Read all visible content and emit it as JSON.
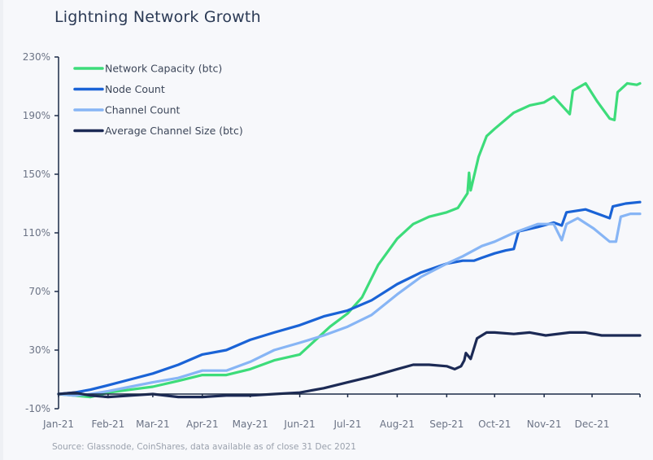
{
  "chart_data": {
    "type": "line",
    "title": "Lightning Network Growth",
    "xlabel": "",
    "ylabel": "",
    "source": "Source: Glassnode, CoinShares, data available as of close 31 Dec 2021",
    "x_unit": "day of 2021",
    "xlim": [
      0,
      364
    ],
    "ylim": [
      -10,
      230
    ],
    "y_ticks": [
      -10,
      30,
      70,
      110,
      150,
      190,
      230
    ],
    "y_tick_labels": [
      "-10%",
      "30%",
      "70%",
      "110%",
      "150%",
      "190%",
      "230%"
    ],
    "x_ticks": [
      0,
      31,
      59,
      90,
      120,
      151,
      181,
      212,
      243,
      273,
      304,
      334,
      364
    ],
    "x_tick_labels": [
      "Jan-21",
      "Feb-21",
      "Mar-21",
      "Apr-21",
      "May-21",
      "Jun-21",
      "Jul-21",
      "Aug-21",
      "Sep-21",
      "Oct-21",
      "Nov-21",
      "Dec-21",
      ""
    ],
    "grid": false,
    "legend_position": "top-left",
    "series": [
      {
        "name": "Network Capacity (btc)",
        "color": "#3ddc7a",
        "x": [
          0,
          10,
          20,
          31,
          45,
          59,
          75,
          90,
          105,
          120,
          135,
          151,
          160,
          170,
          181,
          190,
          200,
          212,
          222,
          232,
          243,
          250,
          256,
          257,
          258,
          263,
          268,
          273,
          285,
          295,
          304,
          310,
          320,
          322,
          330,
          337,
          345,
          348,
          350,
          356,
          362,
          364
        ],
        "y": [
          0,
          -1,
          -2,
          1,
          3,
          5,
          9,
          13,
          13,
          17,
          23,
          27,
          36,
          46,
          55,
          66,
          88,
          106,
          116,
          121,
          124,
          127,
          137,
          151,
          139,
          162,
          176,
          181,
          192,
          197,
          199,
          203,
          191,
          207,
          212,
          200,
          188,
          187,
          206,
          212,
          211,
          212
        ]
      },
      {
        "name": "Node Count",
        "color": "#1a63d6",
        "x": [
          0,
          10,
          20,
          31,
          45,
          59,
          75,
          90,
          105,
          120,
          135,
          151,
          166,
          181,
          196,
          212,
          227,
          243,
          253,
          260,
          265,
          273,
          280,
          285,
          288,
          300,
          310,
          315,
          318,
          330,
          340,
          345,
          347,
          355,
          364
        ],
        "y": [
          0,
          1,
          3,
          6,
          10,
          14,
          20,
          27,
          30,
          37,
          42,
          47,
          53,
          57,
          64,
          75,
          83,
          89,
          91,
          91,
          93,
          96,
          98,
          99,
          111,
          114,
          117,
          115,
          124,
          126,
          122,
          120,
          128,
          130,
          131
        ]
      },
      {
        "name": "Channel Count",
        "color": "#87b5f5",
        "x": [
          0,
          10,
          20,
          31,
          45,
          59,
          75,
          90,
          105,
          120,
          135,
          151,
          166,
          181,
          196,
          212,
          227,
          243,
          253,
          265,
          273,
          285,
          300,
          310,
          315,
          318,
          325,
          335,
          345,
          349,
          352,
          358,
          364
        ],
        "y": [
          0,
          -1,
          0,
          2,
          5,
          8,
          11,
          16,
          16,
          22,
          30,
          35,
          40,
          46,
          54,
          68,
          80,
          89,
          94,
          101,
          104,
          110,
          116,
          116,
          105,
          116,
          120,
          113,
          104,
          104,
          121,
          123,
          123
        ]
      },
      {
        "name": "Average Channel Size (btc)",
        "color": "#1c2a55",
        "x": [
          0,
          10,
          20,
          31,
          45,
          59,
          75,
          90,
          105,
          120,
          135,
          151,
          166,
          181,
          196,
          212,
          222,
          232,
          243,
          248,
          252,
          254,
          255,
          258,
          262,
          268,
          273,
          285,
          295,
          305,
          320,
          330,
          340,
          350,
          364
        ],
        "y": [
          0,
          1,
          -1,
          -2,
          -1,
          0,
          -2,
          -2,
          -1,
          -1,
          0,
          1,
          4,
          8,
          12,
          17,
          20,
          20,
          19,
          17,
          19,
          23,
          28,
          24,
          38,
          42,
          42,
          41,
          42,
          40,
          42,
          42,
          40,
          40,
          40
        ]
      }
    ]
  }
}
